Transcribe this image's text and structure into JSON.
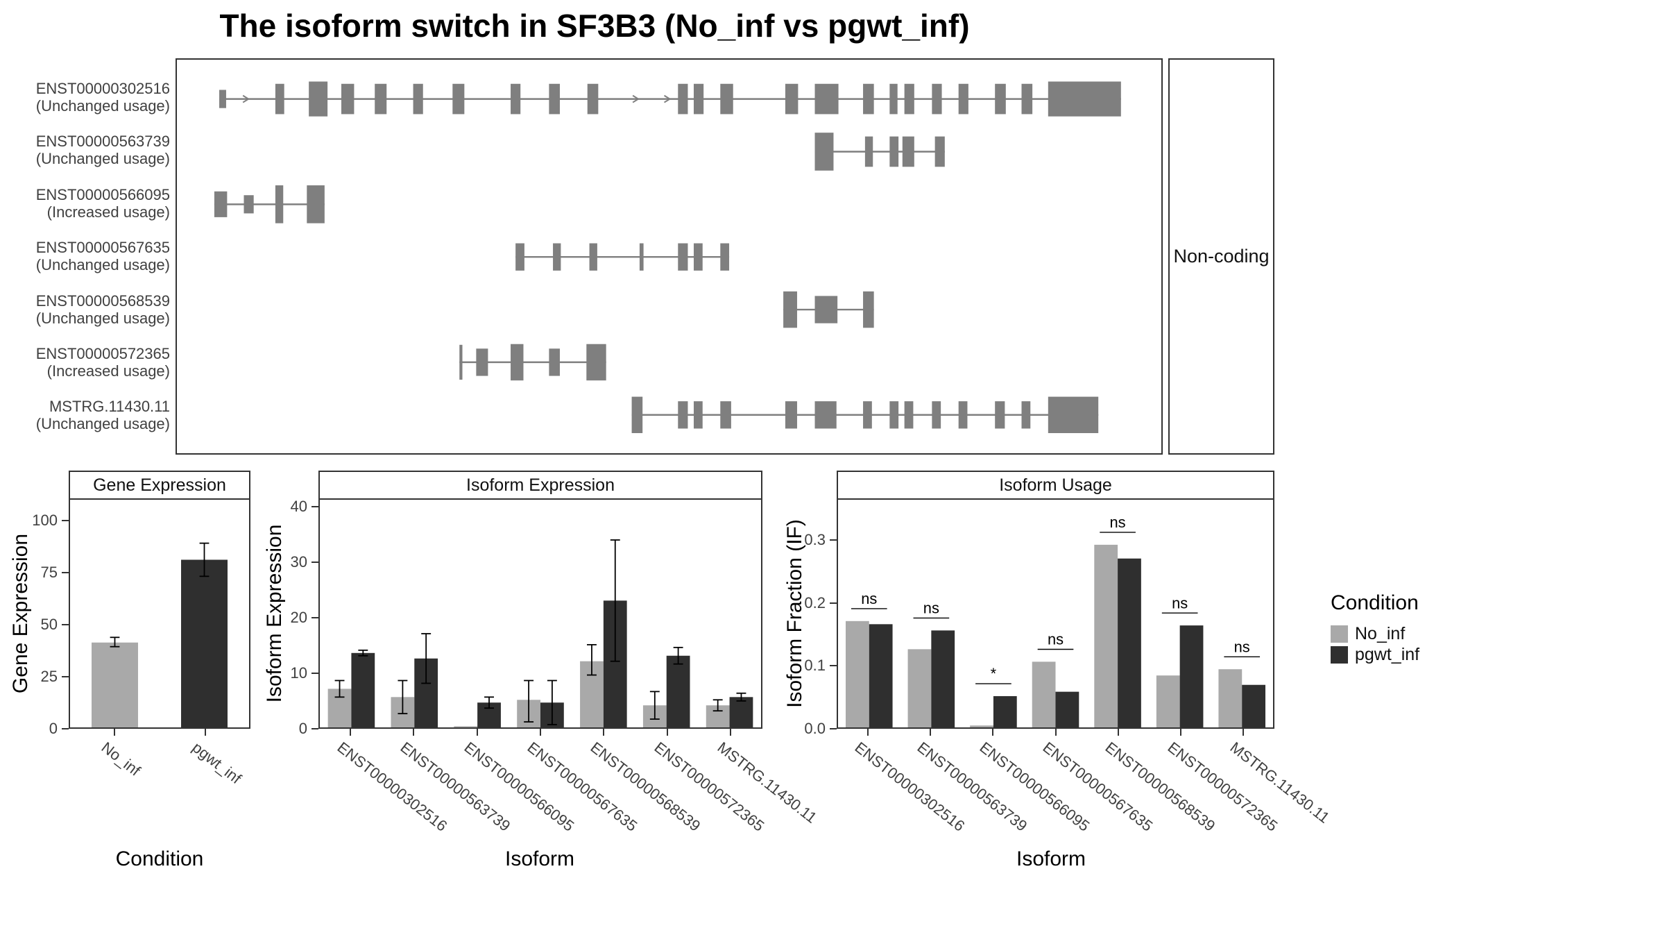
{
  "title": "The isoform switch in SF3B3 (No_inf vs pgwt_inf)",
  "colors": {
    "no_inf": "#a9a9a9",
    "pgwt_inf": "#2f2f2f",
    "exon": "#7f7f7f",
    "panel_border": "#333333"
  },
  "legend": {
    "title": "Condition",
    "items": [
      {
        "label": "No_inf",
        "color": "#a9a9a9"
      },
      {
        "label": "pgwt_inf",
        "color": "#2f2f2f"
      }
    ]
  },
  "transcript_plot": {
    "facet_label": "Non-coding",
    "transcripts": [
      {
        "id": "ENST00000302516",
        "usage": "(Unchanged usage)",
        "line": [
          43,
          959
        ],
        "arrows": [
          72,
          468,
          500
        ],
        "exons": [
          [
            43,
            7,
            0.6
          ],
          [
            100,
            9,
            1
          ],
          [
            134,
            19,
            1.15
          ],
          [
            167,
            13,
            1
          ],
          [
            201,
            12,
            1
          ],
          [
            240,
            10,
            1
          ],
          [
            280,
            12,
            1
          ],
          [
            339,
            10,
            1
          ],
          [
            378,
            11,
            1
          ],
          [
            417,
            11,
            1
          ],
          [
            509,
            10,
            1
          ],
          [
            525,
            10,
            1
          ],
          [
            552,
            13,
            1
          ],
          [
            618,
            13,
            1
          ],
          [
            648,
            24,
            1
          ],
          [
            697,
            11,
            1
          ],
          [
            724,
            8,
            1
          ],
          [
            739,
            10,
            1
          ],
          [
            767,
            10,
            1
          ],
          [
            794,
            10,
            1
          ],
          [
            831,
            11,
            1
          ],
          [
            858,
            11,
            1
          ],
          [
            885,
            74,
            1.15
          ]
        ]
      },
      {
        "id": "ENST00000563739",
        "usage": "(Unchanged usage)",
        "line": [
          648,
          780
        ],
        "arrows": [],
        "exons": [
          [
            648,
            19,
            1.25
          ],
          [
            699,
            8,
            1
          ],
          [
            724,
            9,
            1
          ],
          [
            737,
            12,
            1
          ],
          [
            770,
            10,
            1
          ]
        ]
      },
      {
        "id": "ENST00000566095",
        "usage": "(Increased usage)",
        "line": [
          38,
          150
        ],
        "arrows": [],
        "exons": [
          [
            38,
            13,
            0.85
          ],
          [
            68,
            10,
            0.6
          ],
          [
            100,
            8,
            1.25
          ],
          [
            132,
            18,
            1.25
          ]
        ]
      },
      {
        "id": "ENST00000567635",
        "usage": "(Unchanged usage)",
        "line": [
          344,
          561
        ],
        "arrows": [],
        "exons": [
          [
            344,
            9,
            0.9
          ],
          [
            382,
            8,
            0.9
          ],
          [
            419,
            8,
            0.9
          ],
          [
            470,
            4,
            0.9
          ],
          [
            509,
            10,
            0.9
          ],
          [
            525,
            9,
            0.9
          ],
          [
            552,
            9,
            0.9
          ]
        ]
      },
      {
        "id": "ENST00000568539",
        "usage": "(Unchanged usage)",
        "line": [
          616,
          708
        ],
        "arrows": [],
        "exons": [
          [
            616,
            14,
            1.2
          ],
          [
            648,
            23,
            0.9
          ],
          [
            697,
            11,
            1.2
          ]
        ]
      },
      {
        "id": "ENST00000572365",
        "usage": "(Increased usage)",
        "line": [
          287,
          436
        ],
        "arrows": [],
        "exons": [
          [
            287,
            3,
            1.15
          ],
          [
            304,
            12,
            0.9
          ],
          [
            339,
            13,
            1.2
          ],
          [
            378,
            11,
            0.9
          ],
          [
            416,
            20,
            1.2
          ]
        ]
      },
      {
        "id": "MSTRG.11430.11",
        "usage": "(Unchanged usage)",
        "line": [
          462,
          936
        ],
        "arrows": [],
        "exons": [
          [
            462,
            11,
            1.2
          ],
          [
            509,
            10,
            0.9
          ],
          [
            525,
            9,
            0.9
          ],
          [
            552,
            11,
            0.9
          ],
          [
            618,
            12,
            0.9
          ],
          [
            648,
            22,
            0.9
          ],
          [
            697,
            9,
            0.9
          ],
          [
            724,
            9,
            0.9
          ],
          [
            739,
            9,
            0.9
          ],
          [
            767,
            9,
            0.9
          ],
          [
            794,
            9,
            0.9
          ],
          [
            831,
            10,
            0.9
          ],
          [
            858,
            9,
            0.9
          ],
          [
            885,
            51,
            1.2
          ]
        ]
      }
    ]
  },
  "chart_data": [
    {
      "id": "gene_expression",
      "type": "bar",
      "title": "Gene Expression",
      "xlabel": "Condition",
      "ylabel": "Gene Expression",
      "categories": [
        "No_inf",
        "pgwt_inf"
      ],
      "values": [
        41,
        81
      ],
      "errors": [
        [
          39,
          43.5
        ],
        [
          73,
          89
        ]
      ],
      "bar_colors": [
        "#a9a9a9",
        "#2f2f2f"
      ],
      "ylim": [
        0,
        110
      ],
      "yticks": [
        0,
        25,
        50,
        75,
        100
      ],
      "ytick_labels": [
        "0",
        "25",
        "50",
        "75",
        "100"
      ]
    },
    {
      "id": "isoform_expression",
      "type": "grouped_bar",
      "title": "Isoform Expression",
      "xlabel": "Isoform",
      "ylabel": "Isoform Expression",
      "categories": [
        "ENST00000302516",
        "ENST00000563739",
        "ENST00000566095",
        "ENST00000567635",
        "ENST00000568539",
        "ENST00000572365",
        "MSTRG.11430.11"
      ],
      "series": [
        {
          "name": "No_inf",
          "color": "#a9a9a9",
          "values": [
            7,
            5.5,
            0.2,
            5,
            12,
            4,
            4
          ],
          "errors": [
            [
              5.5,
              8.5
            ],
            [
              2.5,
              8.5
            ],
            null,
            [
              1,
              8.5
            ],
            [
              9.5,
              15
            ],
            [
              1.5,
              6.5
            ],
            [
              3,
              5
            ]
          ]
        },
        {
          "name": "pgwt_inf",
          "color": "#2f2f2f",
          "values": [
            13.5,
            12.5,
            4.5,
            4.5,
            23,
            13,
            5.5
          ],
          "errors": [
            [
              13,
              14
            ],
            [
              8,
              17
            ],
            [
              3.5,
              5.5
            ],
            [
              0.5,
              8.5
            ],
            [
              12,
              34
            ],
            [
              11.5,
              14.5
            ],
            [
              4.8,
              6.2
            ]
          ]
        }
      ],
      "ylim": [
        0,
        41.3
      ],
      "yticks": [
        0,
        10,
        20,
        30,
        40
      ],
      "ytick_labels": [
        "0",
        "10",
        "20",
        "30",
        "40"
      ]
    },
    {
      "id": "isoform_usage",
      "type": "grouped_bar",
      "title": "Isoform Usage",
      "xlabel": "Isoform",
      "ylabel": "Isoform Fraction (IF)",
      "categories": [
        "ENST00000302516",
        "ENST00000563739",
        "ENST00000566095",
        "ENST00000567635",
        "ENST00000568539",
        "ENST00000572365",
        "MSTRG.11430.11"
      ],
      "series": [
        {
          "name": "No_inf",
          "color": "#a9a9a9",
          "values": [
            0.17,
            0.125,
            0.003,
            0.105,
            0.292,
            0.083,
            0.093
          ]
        },
        {
          "name": "pgwt_inf",
          "color": "#2f2f2f",
          "values": [
            0.165,
            0.155,
            0.05,
            0.057,
            0.27,
            0.163,
            0.068
          ]
        }
      ],
      "significance": [
        "ns",
        "ns",
        "*",
        "ns",
        "ns",
        "ns",
        "ns"
      ],
      "ylim": [
        0,
        0.364
      ],
      "yticks": [
        0,
        0.1,
        0.2,
        0.3
      ],
      "ytick_labels": [
        "0.0",
        "0.1",
        "0.2",
        "0.3"
      ]
    }
  ]
}
